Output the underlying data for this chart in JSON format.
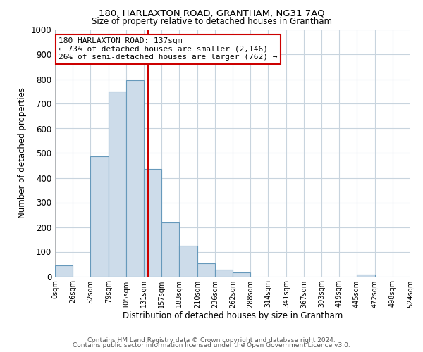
{
  "title": "180, HARLAXTON ROAD, GRANTHAM, NG31 7AQ",
  "subtitle": "Size of property relative to detached houses in Grantham",
  "xlabel": "Distribution of detached houses by size in Grantham",
  "ylabel": "Number of detached properties",
  "bin_edges": [
    0,
    26,
    52,
    79,
    105,
    131,
    157,
    183,
    210,
    236,
    262,
    288,
    314,
    341,
    367,
    393,
    419,
    445,
    472,
    498,
    524
  ],
  "bar_heights": [
    43,
    0,
    488,
    750,
    795,
    435,
    220,
    125,
    53,
    28,
    15,
    0,
    0,
    0,
    0,
    0,
    0,
    8,
    0,
    0
  ],
  "bar_color": "#cddcea",
  "bar_edge_color": "#6699bb",
  "vline_x": 137,
  "vline_color": "#cc0000",
  "annotation_line1": "180 HARLAXTON ROAD: 137sqm",
  "annotation_line2": "← 73% of detached houses are smaller (2,146)",
  "annotation_line3": "26% of semi-detached houses are larger (762) →",
  "xlim": [
    0,
    524
  ],
  "ylim": [
    0,
    1000
  ],
  "yticks": [
    0,
    100,
    200,
    300,
    400,
    500,
    600,
    700,
    800,
    900,
    1000
  ],
  "xtick_labels": [
    "0sqm",
    "26sqm",
    "52sqm",
    "79sqm",
    "105sqm",
    "131sqm",
    "157sqm",
    "183sqm",
    "210sqm",
    "236sqm",
    "262sqm",
    "288sqm",
    "314sqm",
    "341sqm",
    "367sqm",
    "393sqm",
    "419sqm",
    "445sqm",
    "472sqm",
    "498sqm",
    "524sqm"
  ],
  "xtick_positions": [
    0,
    26,
    52,
    79,
    105,
    131,
    157,
    183,
    210,
    236,
    262,
    288,
    314,
    341,
    367,
    393,
    419,
    445,
    472,
    498,
    524
  ],
  "footer_line1": "Contains HM Land Registry data © Crown copyright and database right 2024.",
  "footer_line2": "Contains public sector information licensed under the Open Government Licence v3.0.",
  "background_color": "#ffffff",
  "grid_color": "#c8d4de"
}
